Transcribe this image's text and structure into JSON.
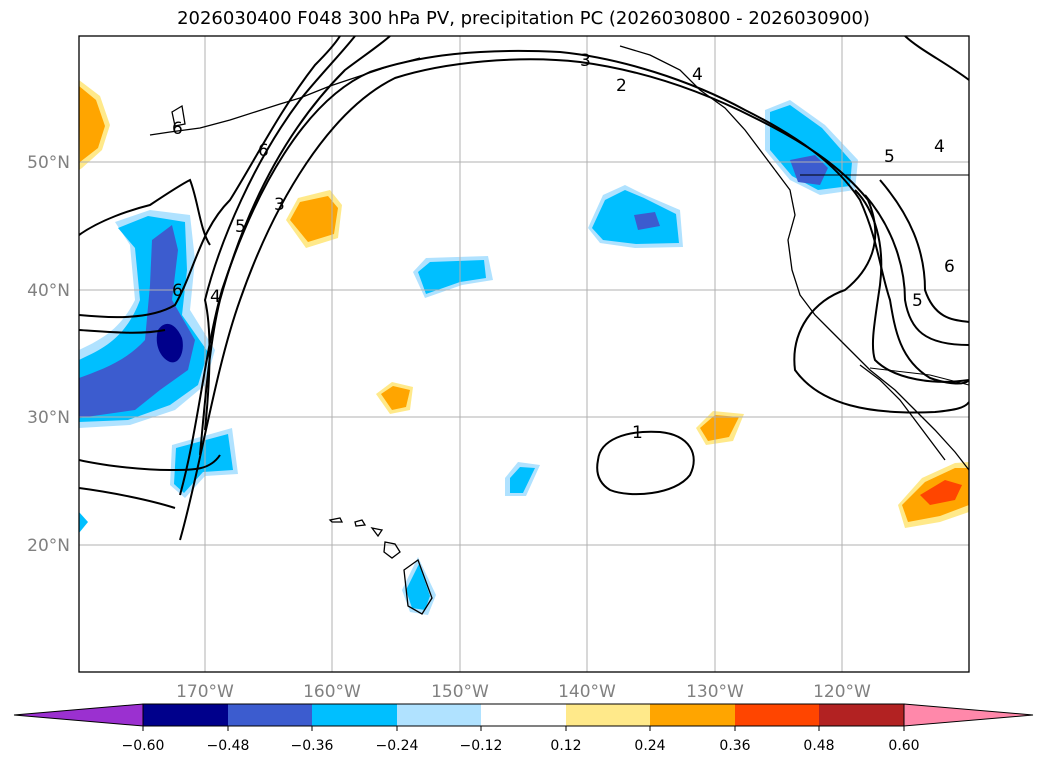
{
  "title": "2026030400 F048 300 hPa PV, precipitation PC (2026030800 - 2026030900)",
  "lat_labels": [
    "50°N",
    "40°N",
    "30°N",
    "20°N"
  ],
  "lon_labels": [
    "170°W",
    "160°W",
    "150°W",
    "140°W",
    "130°W",
    "120°W"
  ],
  "colorbar": {
    "ticks": [
      "−0.60",
      "−0.48",
      "−0.36",
      "−0.24",
      "−0.12",
      "0.12",
      "0.24",
      "0.36",
      "0.48",
      "0.60"
    ],
    "colors": [
      "#9b30d0",
      "#00008b",
      "#3c5ccf",
      "#00bfff",
      "#b0e2ff",
      "#ffffff",
      "#ffe98a",
      "#ffa500",
      "#ff4500",
      "#b22222",
      "#ff88aa"
    ]
  },
  "contour_labels": {
    "c1": "1",
    "c2": "2",
    "c3a": "3",
    "c3b": "3",
    "c4a": "4",
    "c4b": "4",
    "c4c": "4",
    "c5a": "5",
    "c5b": "5",
    "c5c": "5",
    "c6a": "6",
    "c6b": "6",
    "c6c": "6",
    "c6d": "6"
  }
}
